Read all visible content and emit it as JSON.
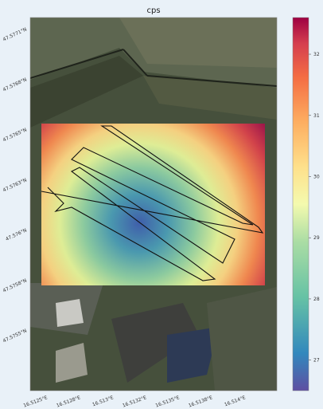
{
  "map": {
    "title": "cps",
    "lat_labels": [
      "47.5771°N",
      "47.5768°N",
      "47.5765°N",
      "47.5763°N",
      "47.576°N",
      "47.5758°N",
      "47.5755°N"
    ],
    "lon_labels": [
      "16.5125°E",
      "16.5128°E",
      "16.513°E",
      "16.5132°E",
      "16.5135°E",
      "16.5138°E",
      "16.514°E"
    ],
    "colorbar": {
      "lim": [
        26.5,
        32.6
      ],
      "ticks": [
        27,
        28,
        29,
        30,
        31,
        32
      ],
      "colormap": "Spectral_r"
    }
  }
}
